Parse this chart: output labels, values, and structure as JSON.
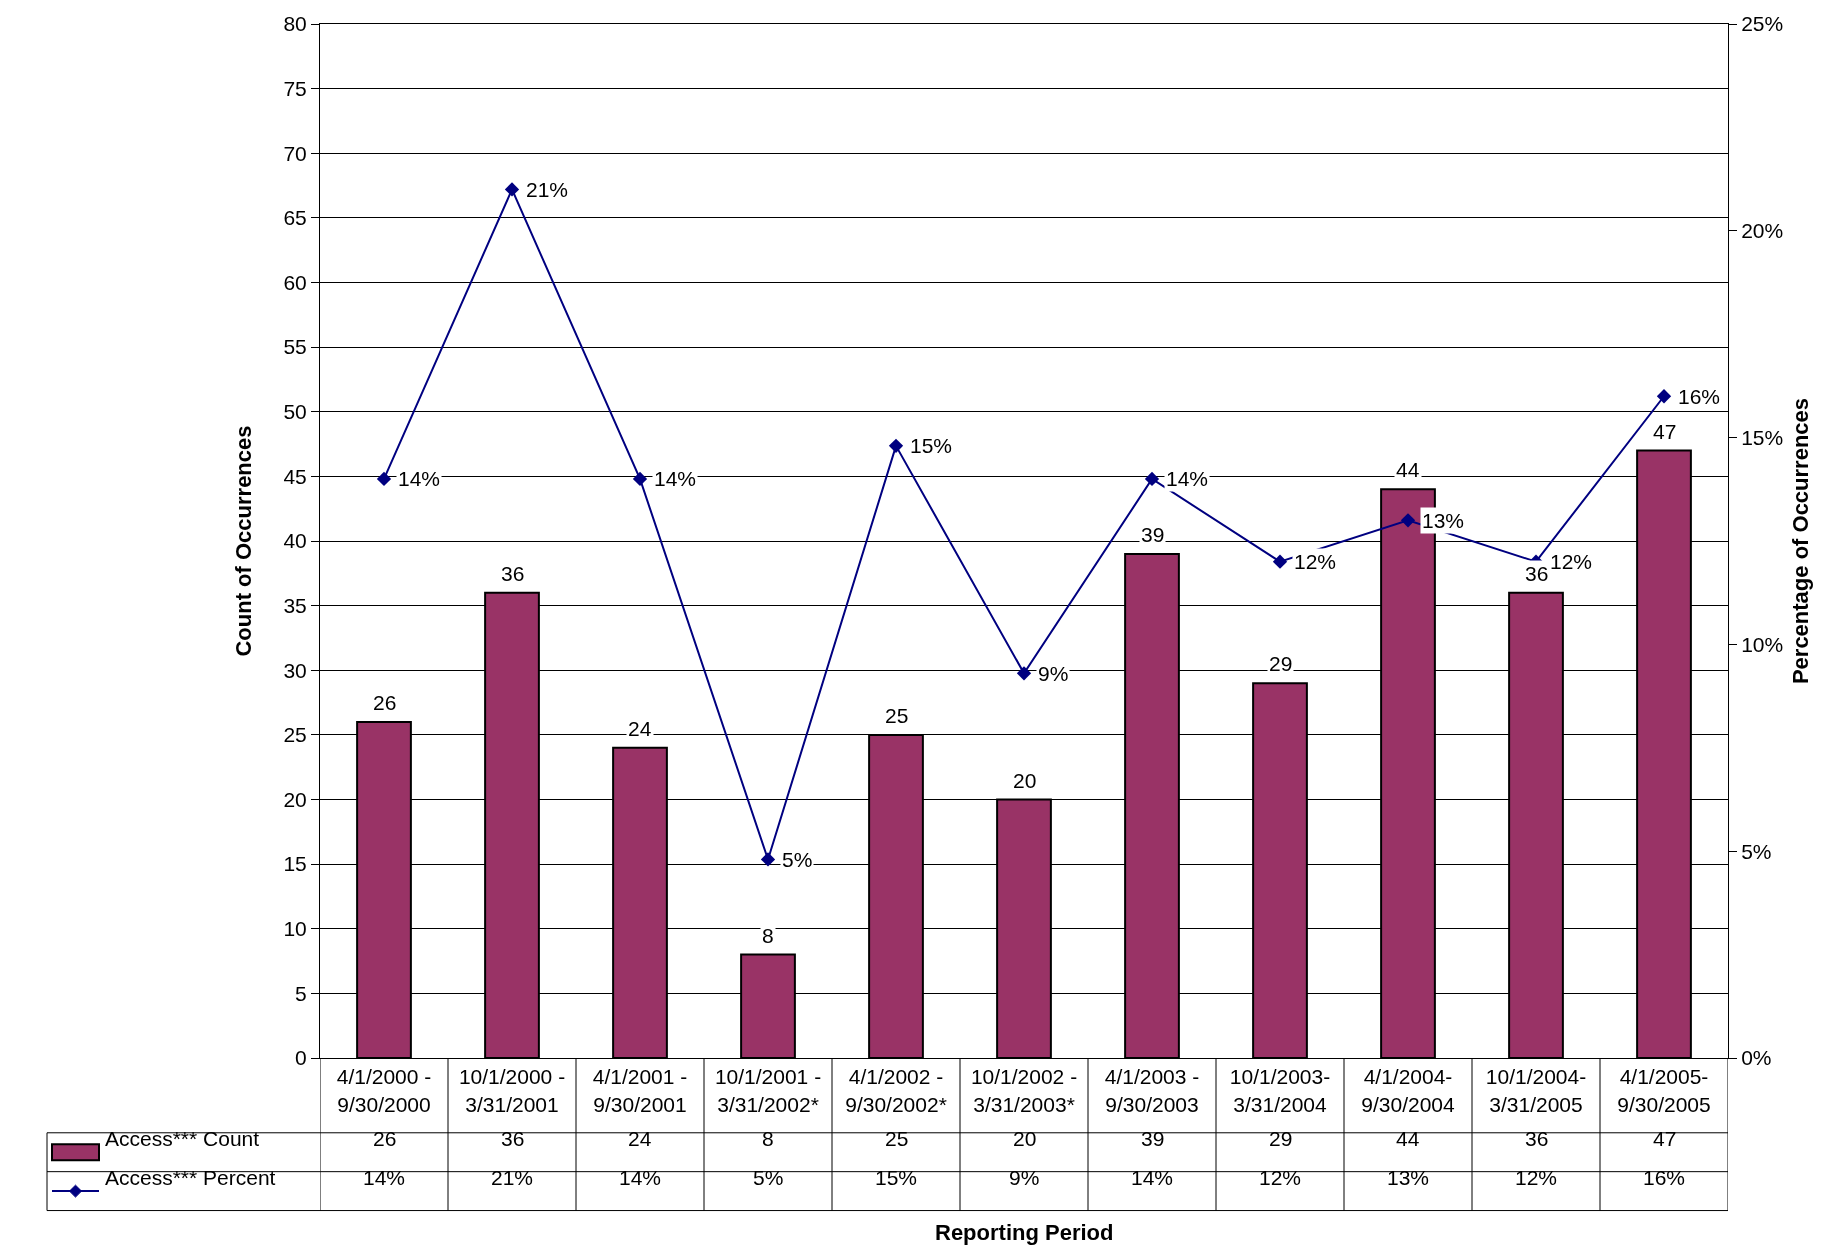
{
  "chart_data": {
    "type": "bar",
    "xlabel": "Reporting Period",
    "ylabel": "Count of Occurrences",
    "y2label": "Percentage of Occurrences",
    "categories": [
      "4/1/2000 -\n9/30/2000",
      "10/1/2000 -\n3/31/2001",
      "4/1/2001 -\n9/30/2001",
      "10/1/2001 -\n3/31/2002*",
      "4/1/2002 -\n9/30/2002*",
      "10/1/2002 -\n3/31/2003*",
      "4/1/2003 -\n9/30/2003",
      "10/1/2003-\n3/31/2004",
      "4/1/2004-\n9/30/2004",
      "10/1/2004-\n3/31/2005",
      "4/1/2005-\n9/30/2005"
    ],
    "series": [
      {
        "name": "Access*** Count",
        "color": "#993366",
        "values": [
          26,
          36,
          24,
          8,
          25,
          20,
          39,
          29,
          44,
          36,
          47
        ],
        "value_labels": [
          "26",
          "36",
          "24",
          "8",
          "25",
          "20",
          "39",
          "29",
          "44",
          "36",
          "47"
        ]
      },
      {
        "name": "Access*** Percent",
        "type": "line",
        "axis": "y2",
        "color": "#000080",
        "marker": "diamond",
        "values": [
          14,
          21,
          14,
          4.8,
          14.8,
          9.3,
          14,
          12,
          13,
          12,
          16
        ],
        "value_labels": [
          "14%",
          "21%",
          "14%",
          "5%",
          "15%",
          "9%",
          "14%",
          "12%",
          "13%",
          "12%",
          "16%"
        ]
      }
    ],
    "ylim": [
      0,
      80
    ],
    "yticks": [
      0,
      5,
      10,
      15,
      20,
      25,
      30,
      35,
      40,
      45,
      50,
      55,
      60,
      65,
      70,
      75,
      80
    ],
    "y2lim": [
      0,
      25
    ],
    "y2ticks": [
      {
        "value": 0,
        "label": "0%"
      },
      {
        "value": 5,
        "label": "5%"
      },
      {
        "value": 10,
        "label": "10%"
      },
      {
        "value": 15,
        "label": "15%"
      },
      {
        "value": 20,
        "label": "20%"
      },
      {
        "value": 25,
        "label": "25%"
      }
    ],
    "grid": "y",
    "legend": "bottom left"
  }
}
